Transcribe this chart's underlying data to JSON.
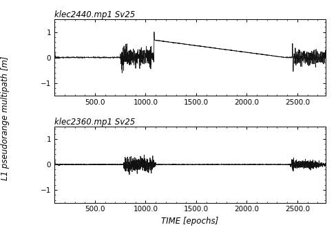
{
  "title1": "klec2440.mp1 Sv25",
  "title2": "klec2360.mp1 Sv25",
  "xlabel": "TIME [epochs]",
  "ylabel": "L1 pseudorange multipath [m]",
  "xlim": [
    100,
    2780
  ],
  "ylim1": [
    -1.5,
    1.5
  ],
  "ylim2": [
    -1.5,
    1.5
  ],
  "yticks": [
    -1.0,
    0.0,
    1.0
  ],
  "xticks": [
    500.0,
    1000.0,
    1500.0,
    2000.0,
    2500.0
  ],
  "bg_color": "#ffffff",
  "line_color": "#111111",
  "line_width": 0.6,
  "title_fontsize": 8.5,
  "label_fontsize": 8.5,
  "tick_fontsize": 7.5
}
